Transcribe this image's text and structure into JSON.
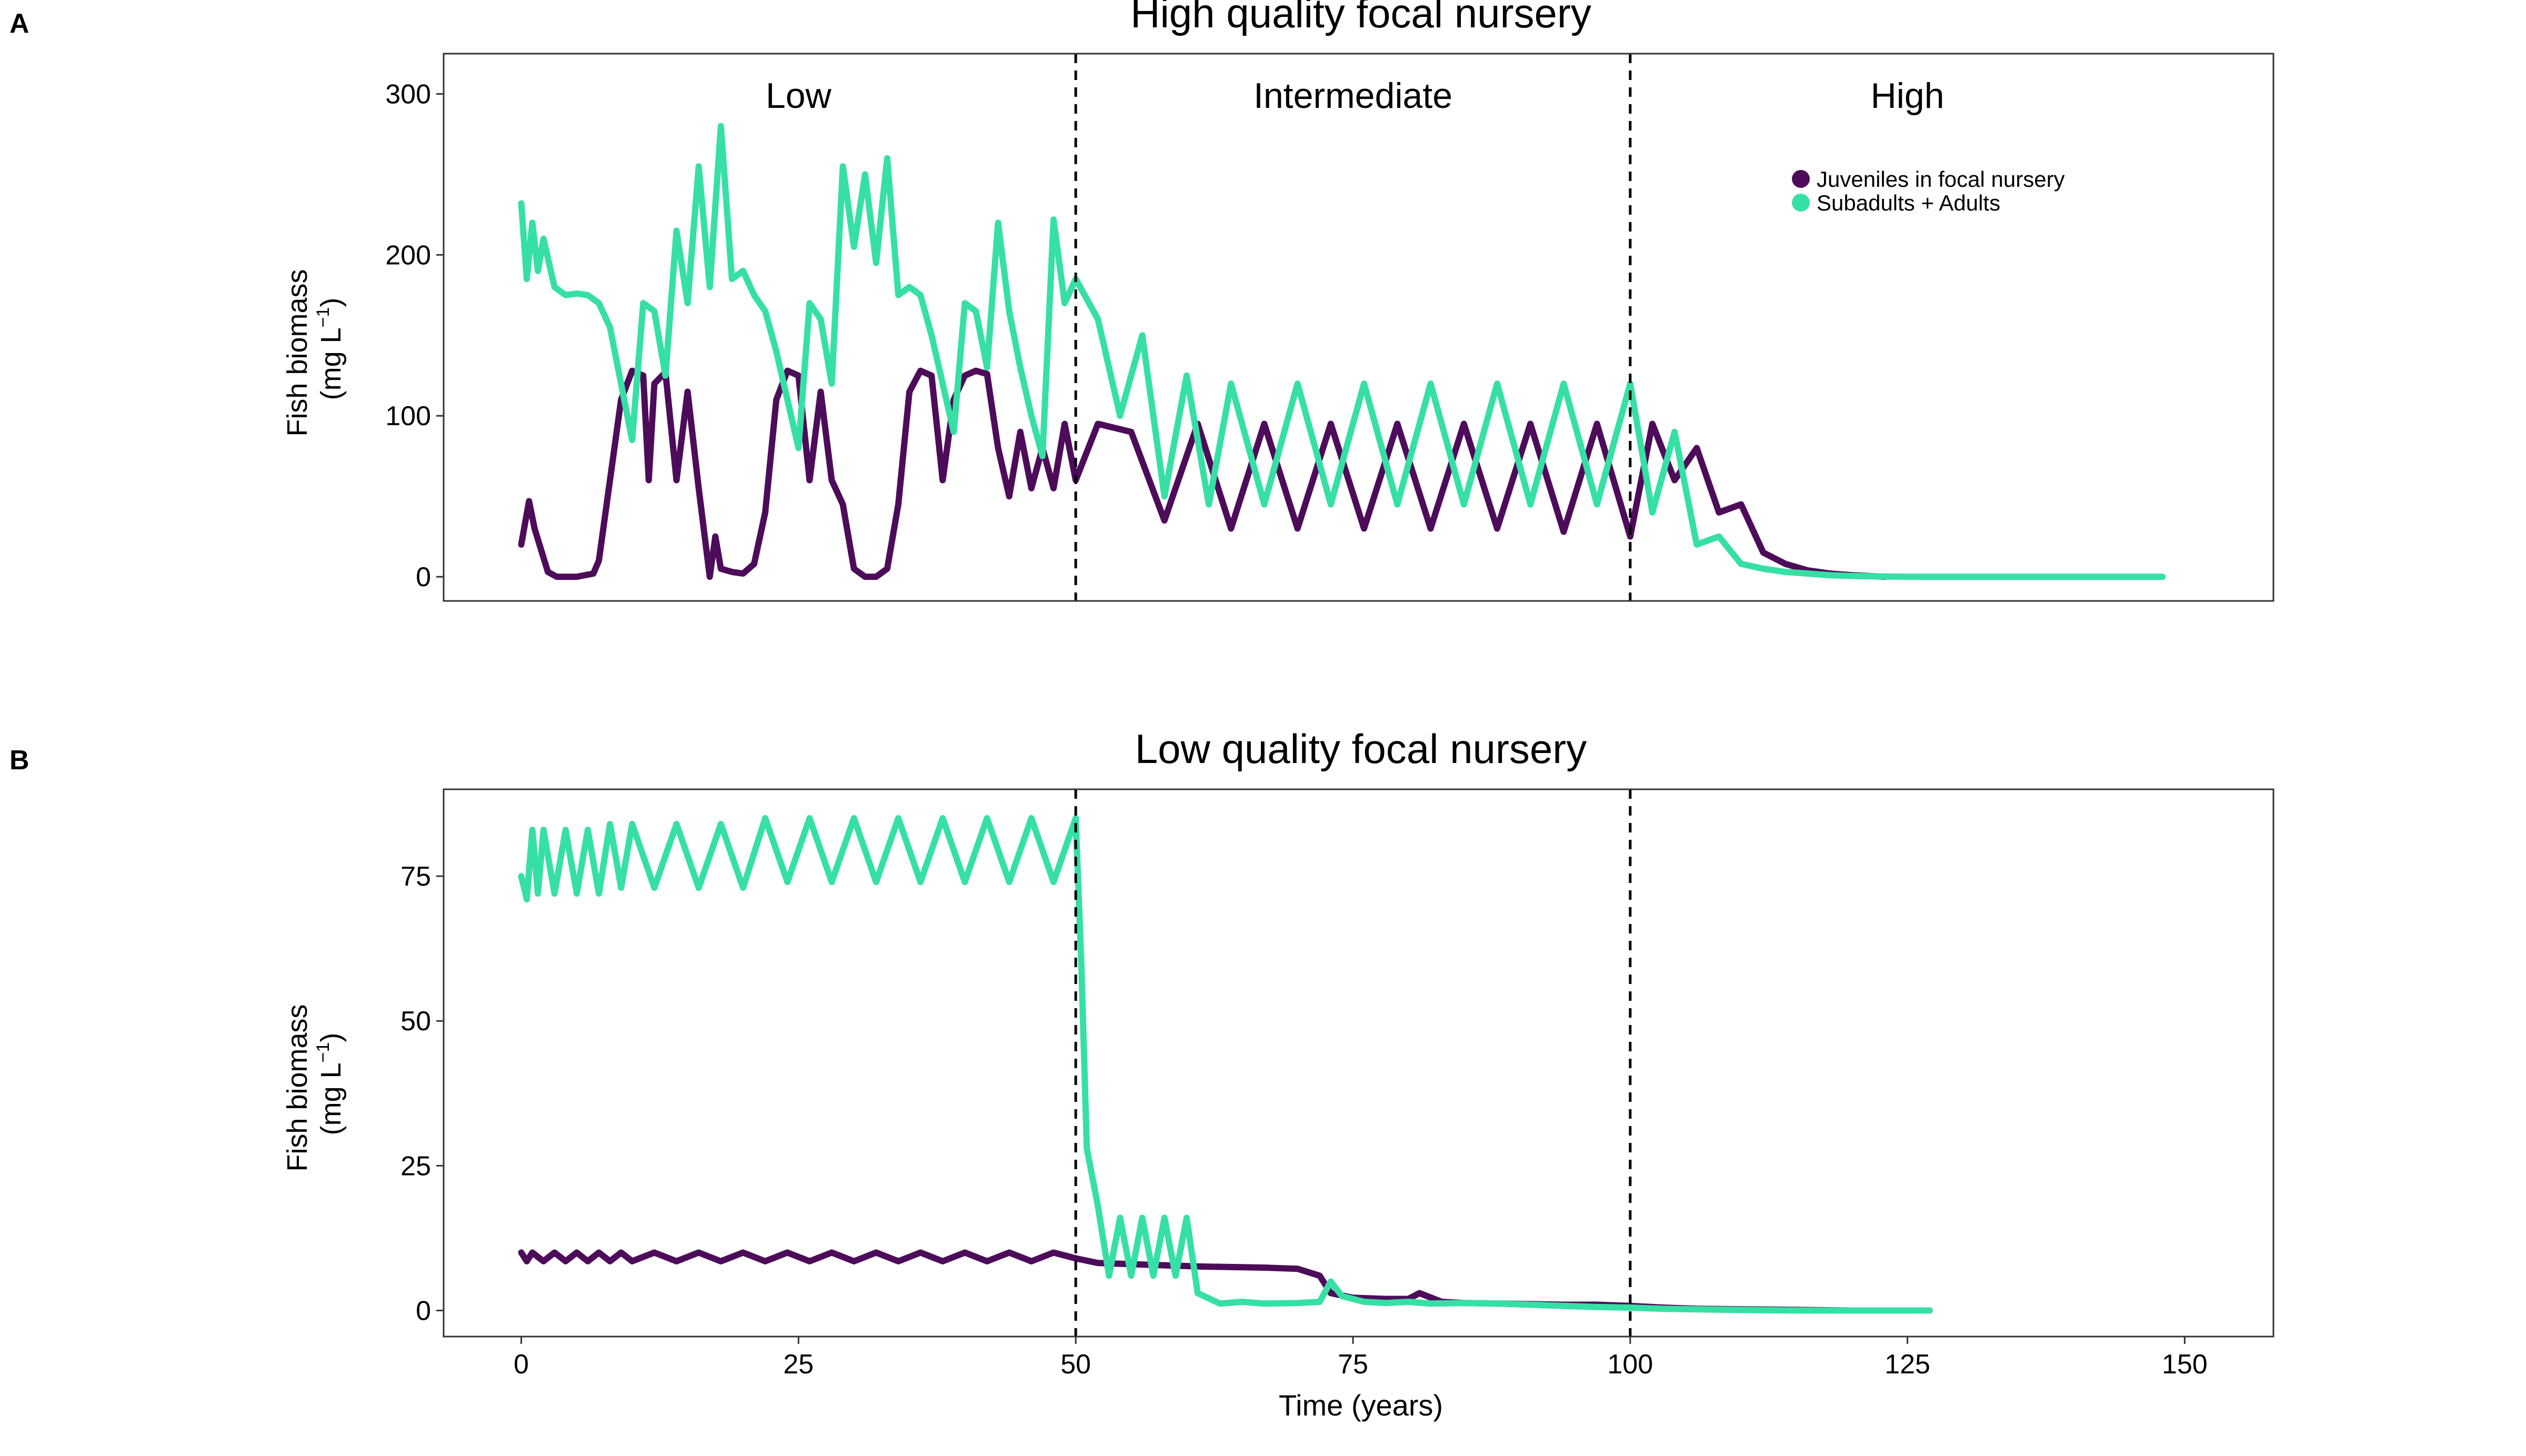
{
  "chart_data": [
    {
      "type": "line",
      "panel": "A",
      "title": "High quality focal nursery",
      "xlabel": "",
      "ylabel_line1": "Fish biomass",
      "ylabel_line2": "(mg L",
      "ylabel_sup": "−1",
      "ylabel_close": ")",
      "xlim": [
        -7,
        158
      ],
      "ylim": [
        -15,
        325
      ],
      "yticks": [
        0,
        100,
        200,
        300
      ],
      "xticks": [],
      "vlines": [
        50,
        100
      ],
      "regions": [
        {
          "label": "Low",
          "x": 25
        },
        {
          "label": "Intermediate",
          "x": 75
        },
        {
          "label": "High",
          "x": 125
        }
      ],
      "legend": {
        "position": "top-right",
        "entries": [
          {
            "label": "Juveniles in focal nursery",
            "color": "#4d0c5a"
          },
          {
            "label": "Subadults + Adults",
            "color": "#36e0a4"
          }
        ]
      },
      "series": [
        {
          "name": "Juveniles in focal nursery",
          "color": "#4d0c5a",
          "x": [
            0,
            0.7,
            1.2,
            2.4,
            3.2,
            5,
            6.5,
            7,
            8,
            9,
            10,
            11,
            11.5,
            12,
            13,
            14,
            15,
            16,
            17,
            17.5,
            18,
            19,
            20,
            21,
            22,
            23,
            24,
            25,
            26,
            27,
            28,
            29,
            30,
            31,
            32,
            33,
            34,
            35,
            36,
            37,
            38,
            39,
            40,
            41,
            42,
            43,
            44,
            45,
            46,
            47,
            48,
            49,
            50,
            52,
            55,
            58,
            61,
            64,
            67,
            70,
            73,
            76,
            79,
            82,
            85,
            88,
            91,
            94,
            97,
            100,
            102,
            104,
            106,
            108,
            110,
            112,
            114,
            116,
            118,
            120,
            123
          ],
          "y": [
            20,
            47,
            30,
            3,
            0,
            0,
            2,
            10,
            60,
            110,
            128,
            125,
            60,
            120,
            127,
            60,
            115,
            55,
            0,
            25,
            5,
            3,
            2,
            8,
            40,
            110,
            128,
            125,
            60,
            115,
            60,
            45,
            5,
            0,
            0,
            5,
            45,
            115,
            128,
            125,
            60,
            110,
            125,
            128,
            126,
            80,
            50,
            90,
            55,
            80,
            55,
            95,
            60,
            95,
            90,
            35,
            95,
            30,
            95,
            30,
            95,
            30,
            95,
            30,
            95,
            30,
            95,
            28,
            95,
            25,
            95,
            60,
            80,
            40,
            45,
            15,
            8,
            4,
            2,
            1,
            0
          ]
        },
        {
          "name": "Subadults + Adults",
          "color": "#36e0a4",
          "x": [
            0,
            0.5,
            1,
            1.5,
            2,
            3,
            4,
            5,
            6,
            7,
            8,
            9,
            10,
            11,
            12,
            13,
            14,
            15,
            16,
            17,
            18,
            19,
            20,
            21,
            22,
            23,
            24,
            25,
            26,
            27,
            28,
            29,
            30,
            31,
            32,
            33,
            34,
            35,
            36,
            37,
            38,
            39,
            40,
            41,
            42,
            43,
            44,
            45,
            46,
            47,
            48,
            49,
            50,
            52,
            54,
            56,
            58,
            60,
            62,
            64,
            67,
            70,
            73,
            76,
            79,
            82,
            85,
            88,
            91,
            94,
            97,
            100,
            102,
            104,
            106,
            108,
            110,
            112,
            114,
            116,
            118,
            120,
            125,
            130,
            135,
            140,
            145,
            148
          ],
          "y": [
            232,
            185,
            220,
            190,
            210,
            180,
            175,
            176,
            175,
            170,
            155,
            120,
            85,
            170,
            165,
            125,
            215,
            170,
            255,
            180,
            280,
            185,
            190,
            175,
            165,
            140,
            110,
            80,
            170,
            160,
            120,
            255,
            205,
            250,
            195,
            260,
            175,
            180,
            175,
            150,
            120,
            90,
            170,
            165,
            130,
            220,
            165,
            130,
            100,
            75,
            222,
            170,
            185,
            160,
            100,
            150,
            50,
            125,
            45,
            120,
            45,
            120,
            45,
            120,
            45,
            120,
            45,
            120,
            45,
            120,
            45,
            120,
            40,
            90,
            20,
            25,
            8,
            5,
            3,
            2,
            1,
            0.5,
            0,
            0,
            0,
            0,
            0,
            0
          ]
        }
      ]
    },
    {
      "type": "line",
      "panel": "B",
      "title": "Low quality focal nursery",
      "xlabel": "Time (years)",
      "ylabel_line1": "Fish biomass",
      "ylabel_line2": "(mg L",
      "ylabel_sup": "−1",
      "ylabel_close": ")",
      "xlim": [
        -7,
        158
      ],
      "ylim": [
        -4.5,
        90
      ],
      "yticks": [
        0,
        25,
        50,
        75
      ],
      "xticks": [
        0,
        25,
        50,
        75,
        100,
        125,
        150
      ],
      "vlines": [
        50,
        100
      ],
      "series": [
        {
          "name": "Juveniles in focal nursery",
          "color": "#4d0c5a",
          "x": [
            0,
            0.5,
            1,
            2,
            3,
            4,
            5,
            6,
            7,
            8,
            9,
            10,
            12,
            14,
            16,
            18,
            20,
            22,
            24,
            26,
            28,
            30,
            32,
            34,
            36,
            38,
            40,
            42,
            44,
            46,
            48,
            50,
            52,
            55,
            58,
            61,
            64,
            67,
            70,
            72,
            73,
            75,
            78,
            80,
            81,
            83,
            85,
            88,
            91,
            94,
            97,
            100,
            103,
            106,
            110,
            115,
            120,
            125,
            127
          ],
          "y": [
            10,
            8.5,
            10,
            8.5,
            10,
            8.5,
            10,
            8.5,
            10,
            8.5,
            10,
            8.5,
            10,
            8.5,
            10,
            8.5,
            10,
            8.5,
            10,
            8.5,
            10,
            8.5,
            10,
            8.5,
            10,
            8.5,
            10,
            8.5,
            10,
            8.5,
            10,
            9,
            8.2,
            8,
            7.8,
            7.6,
            7.5,
            7.4,
            7.2,
            6,
            3,
            2.2,
            2,
            2,
            3,
            1.5,
            1.3,
            1.2,
            1.1,
            1,
            1,
            0.8,
            0.5,
            0.3,
            0.2,
            0.1,
            0,
            0,
            0
          ]
        },
        {
          "name": "Subadults + Adults",
          "color": "#36e0a4",
          "x": [
            0,
            0.5,
            1,
            1.5,
            2,
            3,
            4,
            5,
            6,
            7,
            8,
            9,
            10,
            12,
            14,
            16,
            18,
            20,
            22,
            24,
            26,
            28,
            30,
            32,
            34,
            36,
            38,
            40,
            42,
            44,
            46,
            48,
            50,
            50.5,
            51,
            52,
            53,
            54,
            55,
            56,
            57,
            58,
            59,
            60,
            61,
            63,
            65,
            67,
            70,
            72,
            73,
            74,
            76,
            78,
            80,
            82,
            85,
            88,
            91,
            94,
            97,
            100,
            103,
            106,
            110,
            115,
            120,
            125,
            127
          ],
          "y": [
            75,
            71,
            83,
            72,
            83,
            72,
            83,
            72,
            83,
            72,
            84,
            73,
            84,
            73,
            84,
            73,
            84,
            73,
            85,
            74,
            85,
            74,
            85,
            74,
            85,
            74,
            85,
            74,
            85,
            74,
            85,
            74,
            85,
            60,
            28,
            18,
            6,
            16,
            6,
            16,
            6,
            16,
            6,
            16,
            3,
            1.2,
            1.5,
            1.2,
            1.3,
            1.5,
            5,
            2.5,
            1.5,
            1.3,
            1.5,
            1.2,
            1.3,
            1.2,
            1,
            0.8,
            0.6,
            0.5,
            0.3,
            0.2,
            0.1,
            0,
            0,
            0,
            0
          ]
        }
      ]
    }
  ]
}
